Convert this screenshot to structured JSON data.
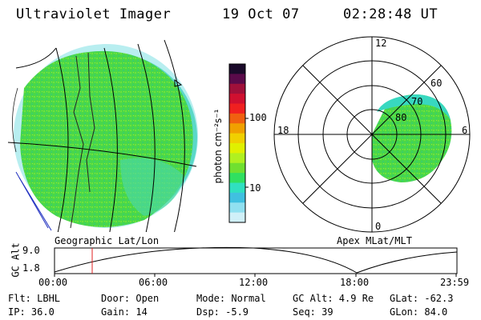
{
  "header": {
    "title": "Ultraviolet Imager",
    "date": "19 Oct 07",
    "time": "02:28:48 UT"
  },
  "colorbar": {
    "unit_label": "photon cm⁻²s⁻¹",
    "ticks": [
      "100",
      "10"
    ],
    "colors": [
      "#1a0a2a",
      "#5a0a4a",
      "#a0103a",
      "#d01030",
      "#f02020",
      "#f06010",
      "#f0a000",
      "#f0d000",
      "#e0f000",
      "#b0f020",
      "#70e030",
      "#30e060",
      "#30e0c0",
      "#40c0e0",
      "#90e0f0",
      "#d0f0f8"
    ]
  },
  "geo_panel": {
    "caption": "Geographic Lat/Lon"
  },
  "polar_panel": {
    "caption": "Apex MLat/MLT",
    "mlt_labels": {
      "top": "12",
      "left": "18",
      "right": "6",
      "bottom": "0"
    },
    "lat_labels": [
      "60",
      "70",
      "80"
    ]
  },
  "altitude_plot": {
    "ylabel": "GC Alt",
    "ymax": "9.0",
    "ymin": "1.8",
    "xticks": [
      "00:00",
      "06:00",
      "12:00",
      "18:00",
      "23:59"
    ],
    "marker_color": "#e02020"
  },
  "info": {
    "flt": "Flt: LBHL",
    "ip": "IP: 36.0",
    "door": "Door: Open",
    "gain": "Gain: 14",
    "mode": "Mode: Normal",
    "dsp": "Dsp:   -5.9",
    "gcalt": "GC Alt: 4.9 Re",
    "seq": "Seq: 39",
    "glat": "GLat: -62.3",
    "glon": "GLon:  84.0"
  }
}
